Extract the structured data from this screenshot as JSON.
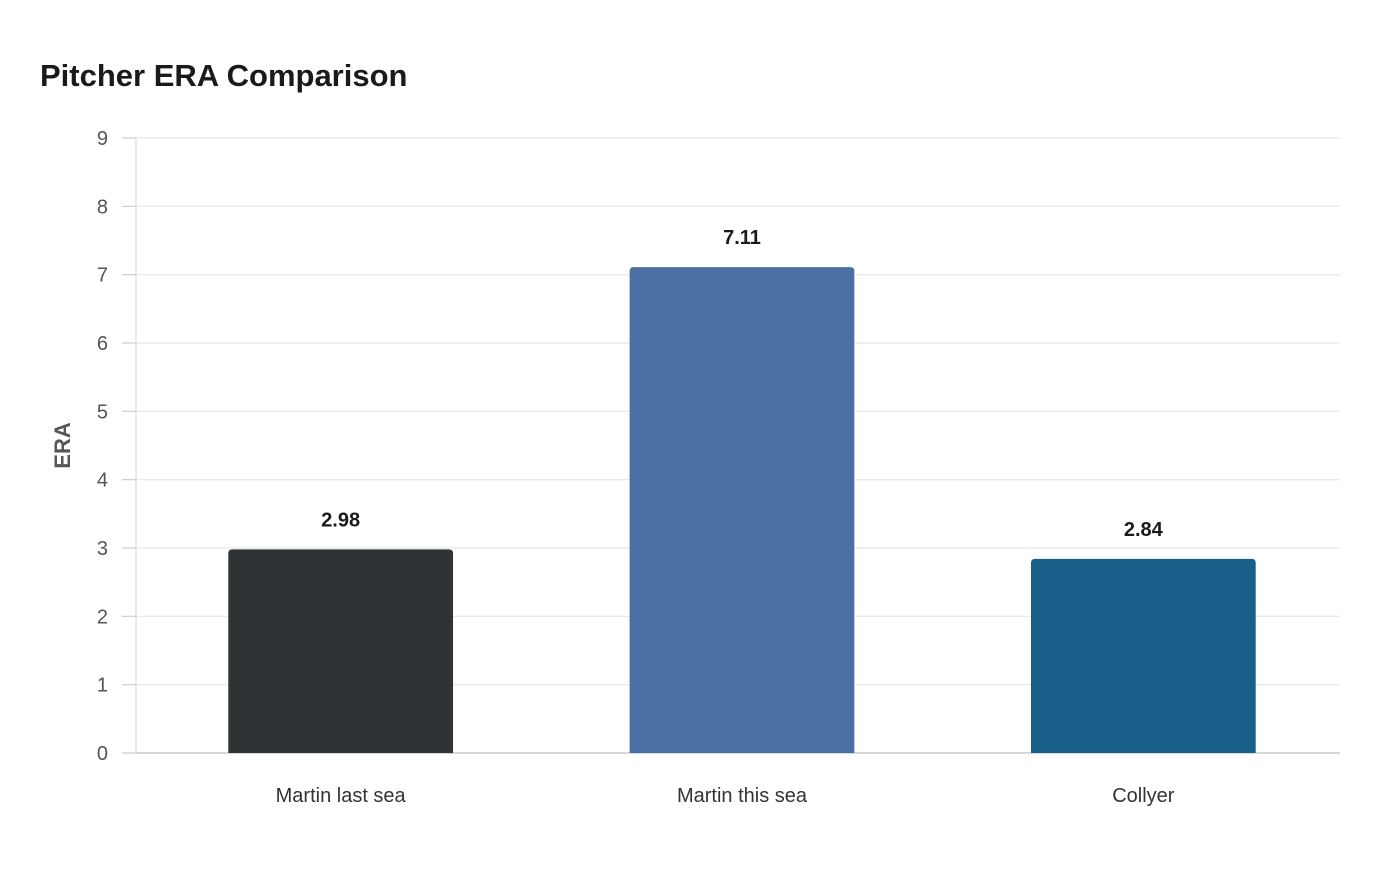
{
  "chart_data": {
    "type": "bar",
    "title": "Pitcher ERA Comparison",
    "xlabel": "",
    "ylabel": "ERA",
    "ylim": [
      0,
      9
    ],
    "yticks": [
      0,
      1,
      2,
      3,
      4,
      5,
      6,
      7,
      8,
      9
    ],
    "categories": [
      "Martin last sea",
      "Martin this sea",
      "Collyer"
    ],
    "values": [
      2.98,
      7.11,
      2.84
    ],
    "value_labels": [
      "2.98",
      "7.11",
      "2.84"
    ],
    "colors": [
      "#2e3436",
      "#4a6fa2",
      "#186089"
    ],
    "grid": true,
    "legend": "none"
  }
}
